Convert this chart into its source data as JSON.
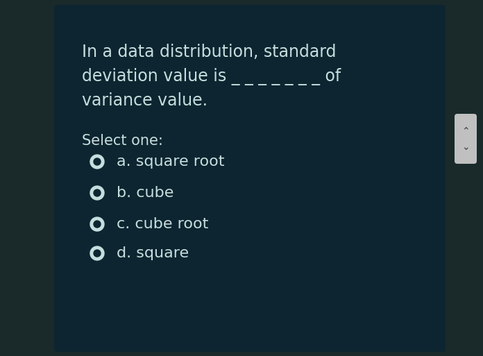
{
  "outer_bg": "#1a2a2a",
  "card_bg": "#0d2530",
  "text_color": "#c5dede",
  "question_line1": "In a data distribution, standard",
  "question_line2": "deviation value is _ _ _ _ _ _ _ of",
  "question_line3": "variance value.",
  "select_label": "Select one:",
  "options": [
    "a. square root",
    "b. cube",
    "c. cube root",
    "d. square"
  ],
  "radio_color_outer": "#c5dede",
  "radio_color_inner": "#1a2e38",
  "font_size_question": 17,
  "font_size_options": 16,
  "font_size_select": 15,
  "scrollbar_bg": "#c0c0c0",
  "scrollbar_arrow_color": "#444444"
}
